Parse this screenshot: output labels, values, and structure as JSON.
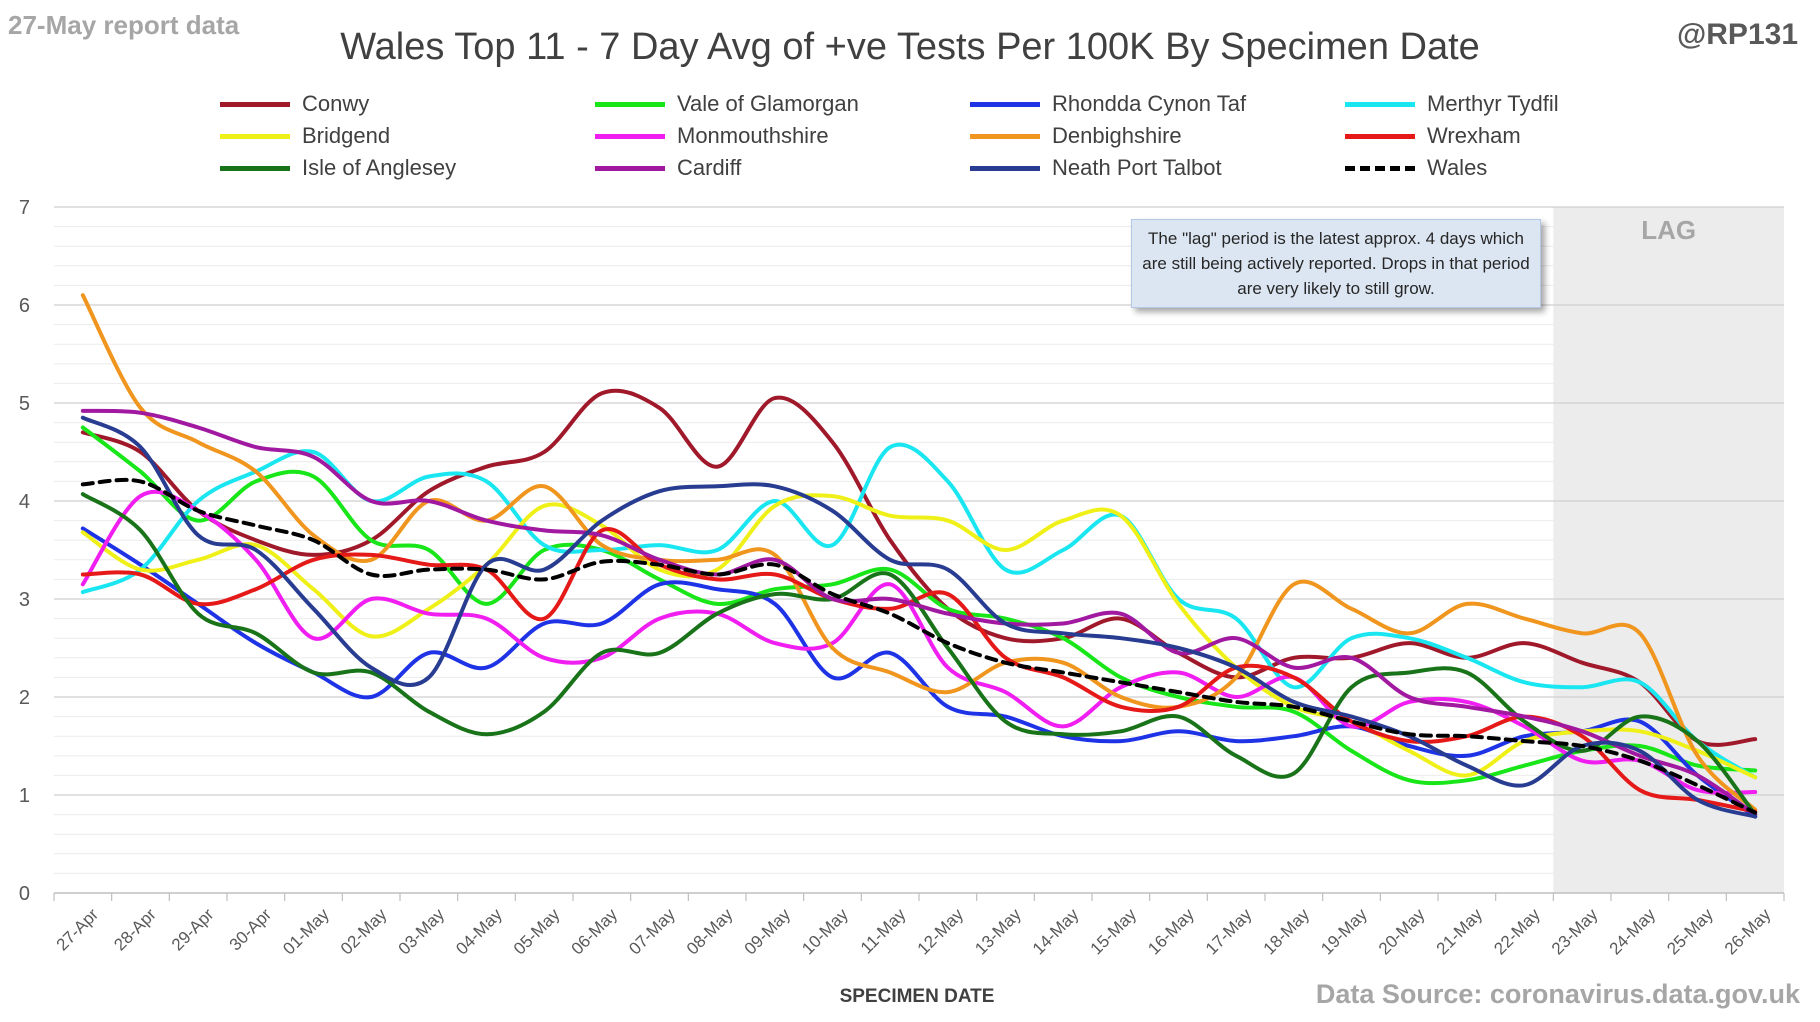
{
  "header": {
    "report_label": "27-May report data",
    "handle": "@RP131"
  },
  "footer": {
    "source": "Data Source: coronavirus.data.gov.uk"
  },
  "annotation": {
    "text": "The \"lag\" period is the latest approx. 4 days which are still being actively reported.  Drops in that period are very likely to still grow."
  },
  "colors": {
    "lag_band": "#ececec",
    "grid": "#d9d9d9",
    "axis_text": "#595959"
  },
  "chart_data": {
    "type": "line",
    "title": "Wales Top 11 - 7 Day Avg of +ve Tests Per 100K By Specimen Date",
    "xlabel": "SPECIMEN DATE",
    "ylabel": "",
    "ylim": [
      0,
      7
    ],
    "yticks": [
      0,
      1,
      2,
      3,
      4,
      5,
      6,
      7
    ],
    "grid": true,
    "legend_position": "top",
    "lag_label": "LAG",
    "lag_start_category": "23-May",
    "categories": [
      "27-Apr",
      "28-Apr",
      "29-Apr",
      "30-Apr",
      "01-May",
      "02-May",
      "03-May",
      "04-May",
      "05-May",
      "06-May",
      "07-May",
      "08-May",
      "09-May",
      "10-May",
      "11-May",
      "12-May",
      "13-May",
      "14-May",
      "15-May",
      "16-May",
      "17-May",
      "18-May",
      "19-May",
      "20-May",
      "21-May",
      "22-May",
      "23-May",
      "24-May",
      "25-May",
      "26-May"
    ],
    "series": [
      {
        "name": "Conwy",
        "color": "#a0192b",
        "dashed": false,
        "values": [
          4.7,
          4.5,
          3.9,
          3.6,
          3.45,
          3.6,
          4.1,
          4.35,
          4.5,
          5.1,
          4.95,
          4.35,
          5.05,
          4.6,
          3.6,
          2.9,
          2.6,
          2.6,
          2.8,
          2.45,
          2.2,
          2.4,
          2.4,
          2.55,
          2.4,
          2.55,
          2.35,
          2.15,
          1.55,
          1.57
        ]
      },
      {
        "name": "Vale of Glamorgan",
        "color": "#19e619",
        "dashed": false,
        "values": [
          4.75,
          4.3,
          3.8,
          4.2,
          4.25,
          3.6,
          3.5,
          2.95,
          3.5,
          3.5,
          3.2,
          2.95,
          3.1,
          3.15,
          3.3,
          2.9,
          2.8,
          2.6,
          2.2,
          2.0,
          1.9,
          1.85,
          1.45,
          1.15,
          1.15,
          1.3,
          1.45,
          1.5,
          1.3,
          1.25
        ]
      },
      {
        "name": "Rhondda Cynon Taf",
        "color": "#1e32e6",
        "dashed": false,
        "values": [
          3.72,
          3.35,
          2.95,
          2.55,
          2.25,
          2.0,
          2.45,
          2.3,
          2.75,
          2.75,
          3.15,
          3.1,
          2.95,
          2.2,
          2.45,
          1.9,
          1.8,
          1.6,
          1.55,
          1.65,
          1.55,
          1.6,
          1.7,
          1.5,
          1.4,
          1.6,
          1.65,
          1.75,
          1.2,
          0.78
        ]
      },
      {
        "name": "Merthyr Tydfil",
        "color": "#19e6f0",
        "dashed": false,
        "values": [
          3.07,
          3.3,
          4.0,
          4.3,
          4.5,
          4.0,
          4.25,
          4.2,
          3.55,
          3.5,
          3.55,
          3.5,
          4.0,
          3.55,
          4.55,
          4.2,
          3.3,
          3.5,
          3.85,
          3.0,
          2.8,
          2.1,
          2.6,
          2.6,
          2.4,
          2.15,
          2.1,
          2.15,
          1.55,
          1.18
        ]
      },
      {
        "name": "Bridgend",
        "color": "#f0f019",
        "dashed": false,
        "values": [
          3.68,
          3.3,
          3.4,
          3.55,
          3.1,
          2.62,
          2.9,
          3.35,
          3.95,
          3.75,
          3.3,
          3.3,
          3.95,
          4.05,
          3.85,
          3.8,
          3.5,
          3.8,
          3.85,
          2.95,
          2.3,
          1.9,
          1.75,
          1.45,
          1.2,
          1.55,
          1.65,
          1.65,
          1.45,
          1.18
        ]
      },
      {
        "name": "Monmouthshire",
        "color": "#f01ef0",
        "dashed": false,
        "values": [
          3.15,
          4.05,
          3.9,
          3.4,
          2.6,
          3.0,
          2.85,
          2.8,
          2.4,
          2.4,
          2.8,
          2.85,
          2.55,
          2.55,
          3.15,
          2.3,
          2.05,
          1.7,
          2.1,
          2.25,
          2.0,
          2.2,
          1.7,
          1.95,
          1.95,
          1.7,
          1.35,
          1.35,
          1.05,
          1.03
        ]
      },
      {
        "name": "Denbighshire",
        "color": "#f0961e",
        "dashed": false,
        "values": [
          6.1,
          4.95,
          4.6,
          4.3,
          3.65,
          3.4,
          4.0,
          3.8,
          4.15,
          3.55,
          3.4,
          3.4,
          3.45,
          2.5,
          2.25,
          2.05,
          2.35,
          2.35,
          2.0,
          1.9,
          2.2,
          3.15,
          2.9,
          2.65,
          2.95,
          2.8,
          2.65,
          2.65,
          1.4,
          0.85
        ]
      },
      {
        "name": "Wrexham",
        "color": "#e61919",
        "dashed": false,
        "values": [
          3.25,
          3.25,
          2.95,
          3.1,
          3.4,
          3.45,
          3.35,
          3.3,
          2.8,
          3.7,
          3.35,
          3.2,
          3.25,
          3.0,
          2.9,
          3.05,
          2.4,
          2.2,
          1.9,
          1.9,
          2.3,
          2.2,
          1.75,
          1.55,
          1.6,
          1.8,
          1.6,
          1.05,
          0.95,
          0.83
        ]
      },
      {
        "name": "Isle of Anglesey",
        "color": "#197319",
        "dashed": false,
        "values": [
          4.07,
          3.7,
          2.85,
          2.65,
          2.25,
          2.25,
          1.85,
          1.62,
          1.85,
          2.45,
          2.45,
          2.85,
          3.05,
          3.0,
          3.25,
          2.5,
          1.75,
          1.62,
          1.65,
          1.8,
          1.4,
          1.22,
          2.1,
          2.25,
          2.25,
          1.75,
          1.45,
          1.8,
          1.55,
          0.8
        ]
      },
      {
        "name": "Cardiff",
        "color": "#a019a0",
        "dashed": false,
        "values": [
          4.92,
          4.9,
          4.75,
          4.55,
          4.45,
          4.0,
          4.0,
          3.8,
          3.7,
          3.65,
          3.4,
          3.25,
          3.4,
          3.0,
          3.0,
          2.85,
          2.75,
          2.75,
          2.85,
          2.45,
          2.6,
          2.3,
          2.4,
          2.0,
          1.9,
          1.8,
          1.65,
          1.4,
          1.2,
          0.8
        ]
      },
      {
        "name": "Neath Port Talbot",
        "color": "#283c91",
        "dashed": false,
        "values": [
          4.85,
          4.55,
          3.65,
          3.5,
          2.9,
          2.3,
          2.2,
          3.35,
          3.3,
          3.8,
          4.1,
          4.15,
          4.15,
          3.9,
          3.4,
          3.3,
          2.75,
          2.65,
          2.6,
          2.5,
          2.3,
          1.95,
          1.8,
          1.6,
          1.3,
          1.1,
          1.5,
          1.45,
          0.95,
          0.78
        ]
      },
      {
        "name": "Wales",
        "color": "#000000",
        "dashed": true,
        "values": [
          4.17,
          4.2,
          3.9,
          3.75,
          3.6,
          3.25,
          3.3,
          3.3,
          3.2,
          3.38,
          3.35,
          3.25,
          3.35,
          3.05,
          2.85,
          2.55,
          2.35,
          2.25,
          2.15,
          2.05,
          1.95,
          1.9,
          1.75,
          1.62,
          1.6,
          1.55,
          1.5,
          1.35,
          1.1,
          0.82
        ]
      }
    ]
  }
}
